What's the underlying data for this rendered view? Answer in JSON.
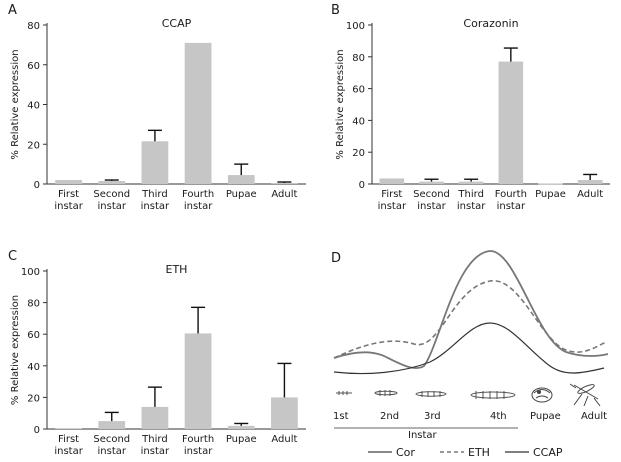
{
  "chart_data": [
    {
      "panel": "A",
      "type": "bar",
      "title": "CCAP",
      "ylabel": "% Relative expression",
      "ylim": [
        0,
        80
      ],
      "yticks": [
        0,
        20,
        40,
        60,
        80
      ],
      "categories": [
        [
          "First",
          "instar"
        ],
        [
          "Second",
          "instar"
        ],
        [
          "Third",
          "instar"
        ],
        [
          "Fourth",
          "instar"
        ],
        [
          "Pupae"
        ],
        [
          "Adult"
        ]
      ],
      "values": [
        2,
        1.5,
        21.5,
        71,
        4.5,
        0.5
      ],
      "error": [
        0,
        0.5,
        5.5,
        0,
        5.5,
        0.5
      ]
    },
    {
      "panel": "B",
      "type": "bar",
      "title": "Corazonin",
      "ylabel": "% Relative expression",
      "ylim": [
        0,
        100
      ],
      "yticks": [
        0,
        20,
        40,
        60,
        80,
        100
      ],
      "categories": [
        [
          "First",
          "instar"
        ],
        [
          "Second",
          "instar"
        ],
        [
          "Third",
          "instar"
        ],
        [
          "Fourth",
          "instar"
        ],
        [
          "Pupae"
        ],
        [
          "Adult"
        ]
      ],
      "values": [
        3.5,
        1.5,
        1.5,
        77,
        0.3,
        2.5
      ],
      "error": [
        0,
        1.5,
        1.5,
        8.5,
        0,
        3.5
      ]
    },
    {
      "panel": "C",
      "type": "bar",
      "title": "ETH",
      "ylabel": "% Relative expression",
      "ylim": [
        0,
        100
      ],
      "yticks": [
        0,
        20,
        40,
        60,
        80,
        100
      ],
      "categories": [
        [
          "First",
          "instar"
        ],
        [
          "Second",
          "instar"
        ],
        [
          "Third",
          "instar"
        ],
        [
          "Fourth",
          "instar"
        ],
        [
          "Pupae"
        ],
        [
          "Adult"
        ]
      ],
      "values": [
        0.5,
        5,
        14,
        60.5,
        2,
        20
      ],
      "error": [
        0,
        5.5,
        12.5,
        16.5,
        1.5,
        21.5
      ]
    },
    {
      "panel": "D",
      "type": "line",
      "xlabel": "Instar",
      "stage_labels": [
        "1st",
        "2nd",
        "3rd",
        "4th",
        "Pupae",
        "Adult"
      ],
      "legend_position": "bottom",
      "series": [
        {
          "name": "Cor",
          "style": "solid",
          "color": "#777777"
        },
        {
          "name": "ETH",
          "style": "dashed",
          "color": "#777777"
        },
        {
          "name": "CCAP",
          "style": "solid",
          "color": "#333333"
        }
      ]
    }
  ]
}
